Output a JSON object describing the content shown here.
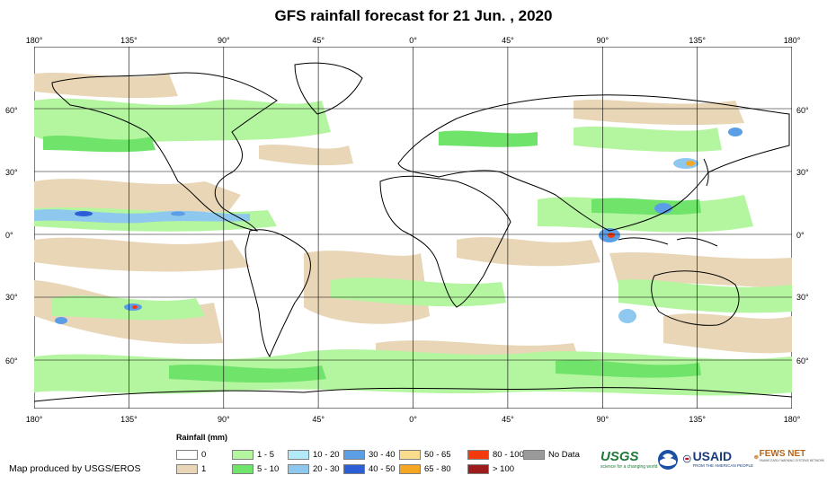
{
  "title": "GFS rainfall forecast for 21 Jun. , 2020",
  "longitude_ticks": [
    {
      "value": -180,
      "label": "180°"
    },
    {
      "value": -135,
      "label": "135°"
    },
    {
      "value": -90,
      "label": "90°"
    },
    {
      "value": -45,
      "label": "45°"
    },
    {
      "value": 0,
      "label": "0°"
    },
    {
      "value": 45,
      "label": "45°"
    },
    {
      "value": 90,
      "label": "90°"
    },
    {
      "value": 135,
      "label": "135°"
    },
    {
      "value": 180,
      "label": "180°"
    }
  ],
  "latitude_ticks": [
    {
      "value": 60,
      "label": "60°"
    },
    {
      "value": 30,
      "label": "30°"
    },
    {
      "value": 0,
      "label": "0°"
    },
    {
      "value": -30,
      "label": "30°"
    },
    {
      "value": -60,
      "label": "60°"
    }
  ],
  "legend": {
    "title": "Rainfall (mm)",
    "items": [
      {
        "label": "0",
        "color": "#ffffff"
      },
      {
        "label": "1",
        "color": "#e8d6b7"
      },
      {
        "label": "1 - 5",
        "color": "#b4f5a0"
      },
      {
        "label": "5 - 10",
        "color": "#6fe36a"
      },
      {
        "label": "10 - 20",
        "color": "#b3eaf7"
      },
      {
        "label": "20 - 30",
        "color": "#8ec8ef"
      },
      {
        "label": "30 - 40",
        "color": "#5b9ee6"
      },
      {
        "label": "40 - 50",
        "color": "#2c5fd6"
      },
      {
        "label": "50 - 65",
        "color": "#f9dc8d"
      },
      {
        "label": "65 - 80",
        "color": "#f5a623"
      },
      {
        "label": "80 - 100",
        "color": "#f23a0c"
      },
      {
        "label": "> 100",
        "color": "#9c1c1c"
      },
      {
        "label": "No Data",
        "color": "#9a9a9a"
      }
    ]
  },
  "credit": "Map produced by USGS/EROS",
  "logos": {
    "usgs": "USGS",
    "usgs_tagline": "science for a changing world",
    "noaa": "noaa-logo",
    "usaid": "USAID",
    "usaid_tagline": "FROM THE AMERICAN PEOPLE",
    "fewsnet": "FEWS NET",
    "fewsnet_tagline": "FAMINE EARLY WARNING SYSTEMS NETWORK"
  }
}
